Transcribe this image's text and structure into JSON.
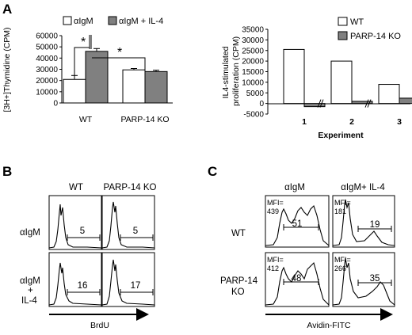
{
  "panels": {
    "A": "A",
    "B": "B",
    "C": "C"
  },
  "colors": {
    "white_bar": "#ffffff",
    "gray_bar": "#808080",
    "axis": "#000000"
  },
  "chart_data": [
    {
      "type": "bar",
      "ylabel": "[3H+]Thymidine (CPM)",
      "xlabel": "",
      "categories": [
        "WT",
        "PARP-14 KO"
      ],
      "series": [
        {
          "name": "αIgM",
          "values": [
            21000,
            29500
          ],
          "errors": [
            3500,
            1200
          ]
        },
        {
          "name": "αIgM + IL-4",
          "values": [
            46000,
            28000
          ],
          "errors": [
            2500,
            1200
          ]
        }
      ],
      "yticks": [
        "0",
        "10000",
        "20000",
        "30000",
        "40000",
        "50000",
        "60000"
      ],
      "ylim": [
        0,
        60000
      ],
      "annotations": [
        "*",
        "*"
      ]
    },
    {
      "type": "bar",
      "ylabel": "IL4-stimulated proliferation (CPM)",
      "xlabel": "Experiment",
      "categories": [
        "1",
        "2",
        "3"
      ],
      "series": [
        {
          "name": "WT",
          "values": [
            25500,
            20000,
            9000
          ]
        },
        {
          "name": "PARP-14 KO",
          "values": [
            -1500,
            1000,
            2500
          ]
        }
      ],
      "yticks": [
        "-5000",
        "0",
        "5000",
        "10000",
        "15000",
        "20000",
        "25000",
        "30000",
        "35000"
      ],
      "ylim": [
        -5000,
        35000
      ]
    }
  ],
  "panelB": {
    "cols": [
      "WT",
      "PARP-14 KO"
    ],
    "rows": [
      "αIgM",
      "αIgM",
      "+",
      "IL-4"
    ],
    "gates": [
      "5",
      "5",
      "16",
      "17"
    ],
    "xlabel": "BrdU"
  },
  "panelC": {
    "cols": [
      "αIgM",
      "αIgM+ IL-4"
    ],
    "rows": [
      "WT",
      "PARP-14",
      "KO"
    ],
    "mfi_label": "MFI=",
    "mfi": [
      "439",
      "181",
      "412",
      "266"
    ],
    "gates": [
      "51",
      "19",
      "48",
      "35"
    ],
    "xlabel": "Avidin-FITC"
  }
}
